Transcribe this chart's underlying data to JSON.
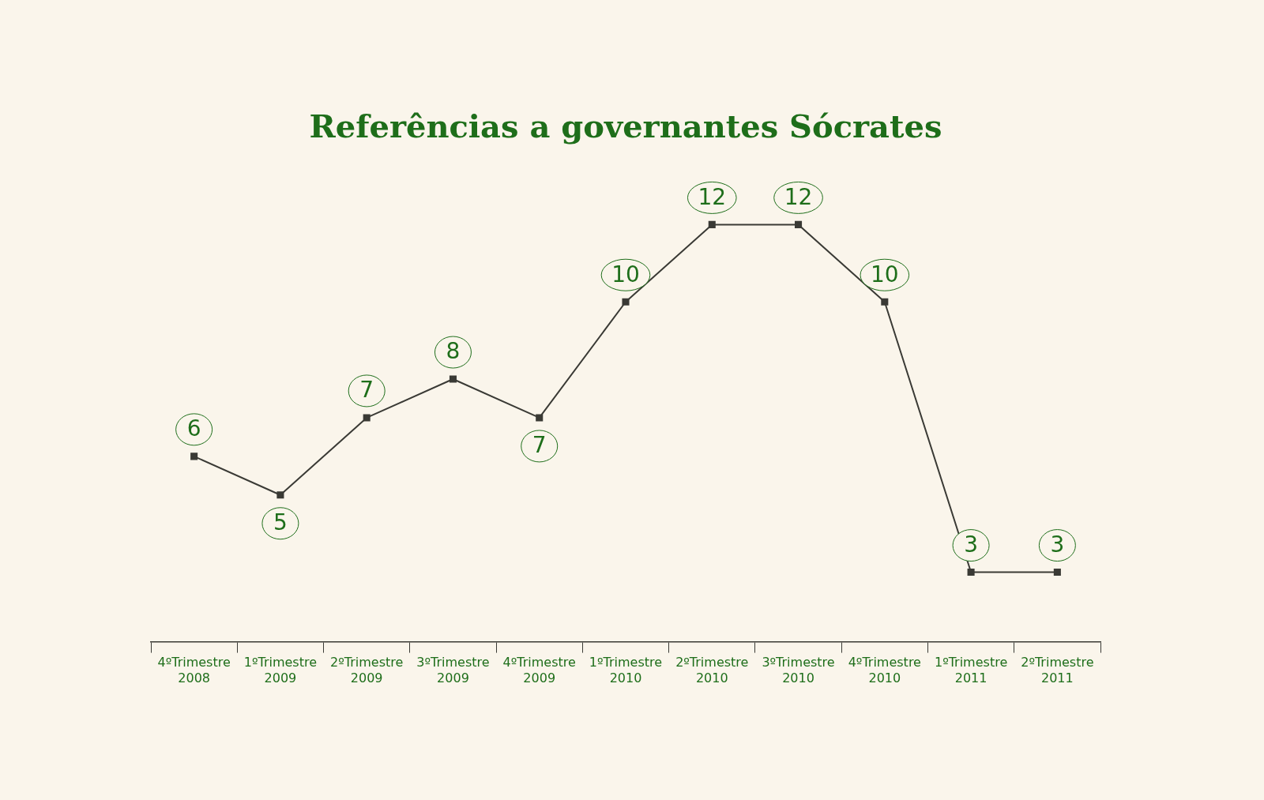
{
  "chart_data": {
    "type": "line",
    "title": "Referências a governantes Sócrates",
    "categories": [
      "4ºTrimestre\n2008",
      "1ºTrimestre\n2009",
      "2ºTrimestre\n2009",
      "3ºTrimestre\n2009",
      "4ºTrimestre\n2009",
      "1ºTrimestre\n2010",
      "2ºTrimestre\n2010",
      "3ºTrimestre\n2010",
      "4ºTrimestre\n2010",
      "1ºTrimestre\n2011",
      "2ºTrimestre\n2011"
    ],
    "series": [
      {
        "color": "#3a3a35",
        "values": [
          6,
          5,
          7,
          8,
          7,
          10,
          12,
          12,
          10,
          3,
          3
        ]
      }
    ],
    "marker": "square",
    "line_style": "solid",
    "data_labels": true,
    "grid": false,
    "legend": false
  }
}
